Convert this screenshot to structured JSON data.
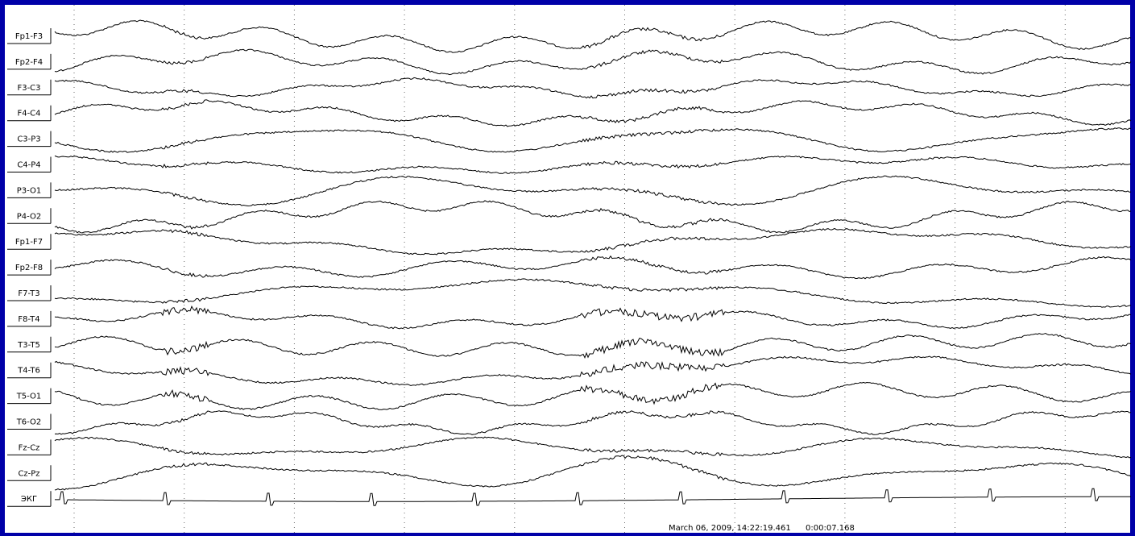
{
  "channels": [
    "Fp1-F3",
    "Fp2-F4",
    "F3-C3",
    "F4-C4",
    "C3-P3",
    "C4-P4",
    "P3-O1",
    "P4-O2",
    "Fp1-F7",
    "Fp2-F8",
    "F7-T3",
    "F8-T4",
    "T3-T5",
    "T4-T6",
    "T5-O1",
    "T6-O2",
    "Fz-Cz",
    "Cz-Pz",
    "ЭКГ"
  ],
  "footer": {
    "timestamp": "March 06, 2009, 14:22:19.461",
    "elapsed": "0:00:07.168"
  }
}
